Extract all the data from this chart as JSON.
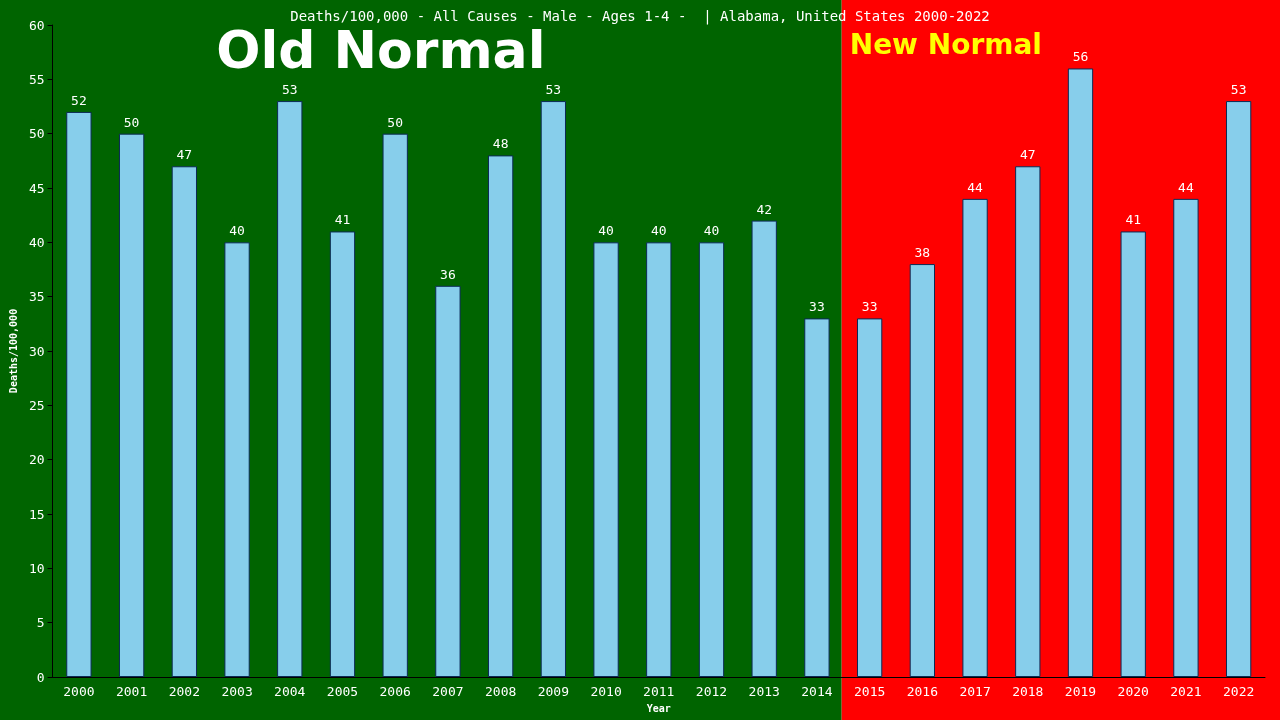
{
  "chart_data": {
    "type": "bar",
    "title": "Deaths/100,000 - All Causes - Male - Ages 1-4 -  | Alabama, United States 2000-2022",
    "xlabel": "Year",
    "ylabel": "Deaths/100,000",
    "categories": [
      "2000",
      "2001",
      "2002",
      "2003",
      "2004",
      "2005",
      "2006",
      "2007",
      "2008",
      "2009",
      "2010",
      "2011",
      "2012",
      "2013",
      "2014",
      "2015",
      "2016",
      "2017",
      "2018",
      "2019",
      "2020",
      "2021",
      "2022"
    ],
    "values": [
      52,
      50,
      47,
      40,
      53,
      41,
      50,
      36,
      48,
      53,
      40,
      40,
      40,
      42,
      33,
      33,
      38,
      44,
      47,
      56,
      41,
      44,
      53
    ],
    "color": "#87ceeb",
    "data_labels": true,
    "ylim": [
      0,
      60
    ],
    "yticks": [
      0,
      5,
      10,
      15,
      20,
      25,
      30,
      35,
      40,
      45,
      50,
      55,
      60
    ],
    "grid": false,
    "bands": [
      {
        "axis": "x",
        "from": "2000",
        "to": "2014",
        "label": "Old Normal",
        "color": "#006400"
      },
      {
        "axis": "x",
        "from": "2015",
        "to": "2022",
        "label": "New Normal",
        "color": "#ff0000"
      }
    ]
  }
}
